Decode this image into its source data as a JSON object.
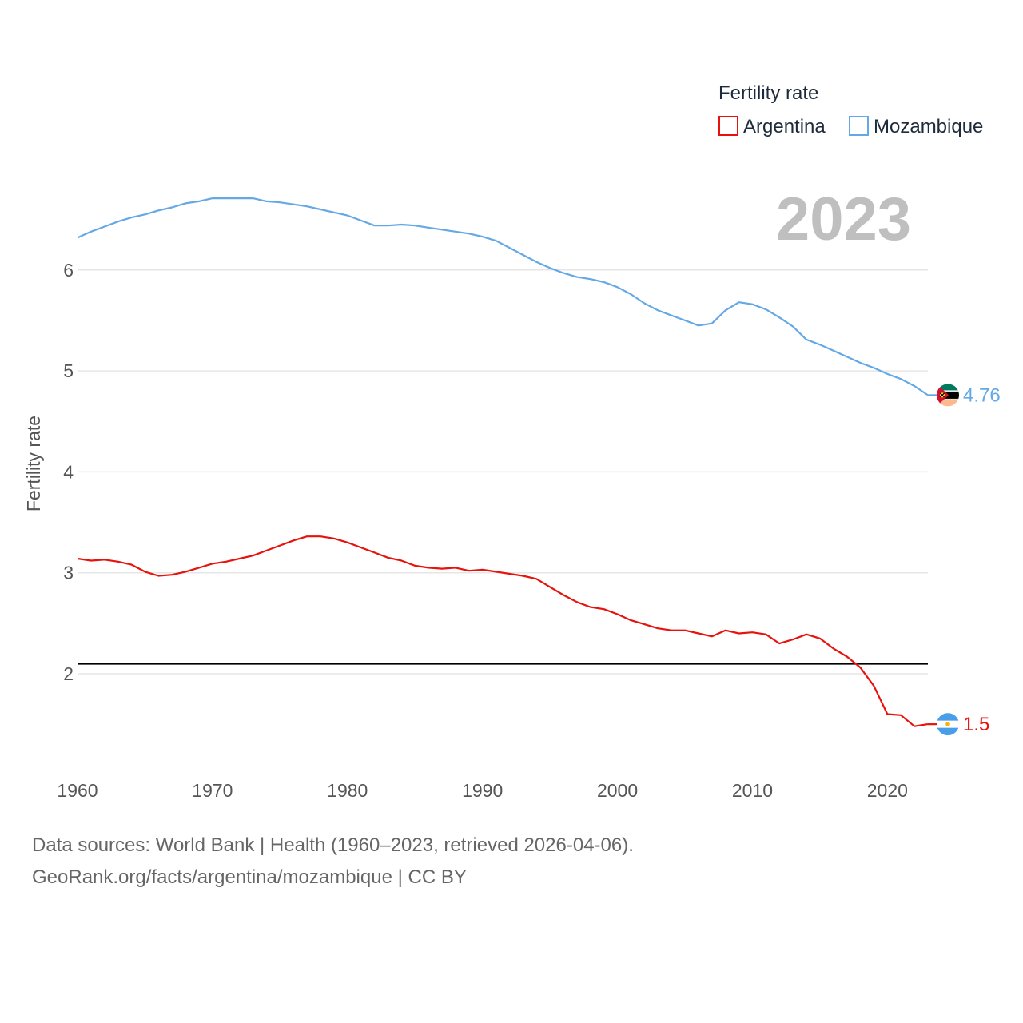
{
  "chart_data": {
    "type": "line",
    "ylabel": "Fertility rate",
    "xlabel": "",
    "xlim": [
      1960,
      2023
    ],
    "ylim": [
      1.05,
      7.0
    ],
    "xticks": [
      1960,
      1970,
      1980,
      1990,
      2000,
      2010,
      2020
    ],
    "yticks": [
      2,
      3,
      4,
      5,
      6
    ],
    "legend": {
      "title": "Fertility rate",
      "position": "top-right",
      "entries": [
        "Argentina",
        "Mozambique"
      ]
    },
    "year_label": "2023",
    "reference_line": {
      "y": 2.1,
      "color": "#000000"
    },
    "x": [
      1960,
      1961,
      1962,
      1963,
      1964,
      1965,
      1966,
      1967,
      1968,
      1969,
      1970,
      1971,
      1972,
      1973,
      1974,
      1975,
      1976,
      1977,
      1978,
      1979,
      1980,
      1981,
      1982,
      1983,
      1984,
      1985,
      1986,
      1987,
      1988,
      1989,
      1990,
      1991,
      1992,
      1993,
      1994,
      1995,
      1996,
      1997,
      1998,
      1999,
      2000,
      2001,
      2002,
      2003,
      2004,
      2005,
      2006,
      2007,
      2008,
      2009,
      2010,
      2011,
      2012,
      2013,
      2014,
      2015,
      2016,
      2017,
      2018,
      2019,
      2020,
      2021,
      2022,
      2023
    ],
    "series": [
      {
        "name": "Argentina",
        "color": "#e8120c",
        "end_label": "1.5",
        "values": [
          3.14,
          3.12,
          3.13,
          3.11,
          3.08,
          3.01,
          2.97,
          2.98,
          3.01,
          3.05,
          3.09,
          3.11,
          3.14,
          3.17,
          3.22,
          3.27,
          3.32,
          3.36,
          3.36,
          3.34,
          3.3,
          3.25,
          3.2,
          3.15,
          3.12,
          3.07,
          3.05,
          3.04,
          3.05,
          3.02,
          3.03,
          3.01,
          2.99,
          2.97,
          2.94,
          2.86,
          2.78,
          2.71,
          2.66,
          2.64,
          2.59,
          2.53,
          2.49,
          2.45,
          2.43,
          2.43,
          2.4,
          2.37,
          2.43,
          2.4,
          2.41,
          2.39,
          2.3,
          2.34,
          2.39,
          2.35,
          2.25,
          2.17,
          2.06,
          1.88,
          1.6,
          1.59,
          1.48,
          1.5
        ]
      },
      {
        "name": "Mozambique",
        "color": "#64a8e6",
        "end_label": "4.76",
        "values": [
          6.32,
          6.38,
          6.43,
          6.48,
          6.52,
          6.55,
          6.59,
          6.62,
          6.66,
          6.68,
          6.71,
          6.71,
          6.71,
          6.71,
          6.68,
          6.67,
          6.65,
          6.63,
          6.6,
          6.57,
          6.54,
          6.49,
          6.44,
          6.44,
          6.45,
          6.44,
          6.42,
          6.4,
          6.38,
          6.36,
          6.33,
          6.29,
          6.22,
          6.15,
          6.08,
          6.02,
          5.97,
          5.93,
          5.91,
          5.88,
          5.83,
          5.76,
          5.67,
          5.6,
          5.55,
          5.5,
          5.45,
          5.47,
          5.6,
          5.68,
          5.66,
          5.61,
          5.53,
          5.44,
          5.31,
          5.26,
          5.2,
          5.14,
          5.08,
          5.03,
          4.97,
          4.92,
          4.85,
          4.76
        ]
      }
    ]
  },
  "footer": {
    "line1": "Data sources: World Bank | Health (1960–2023, retrieved 2026-04-06).",
    "line2": "GeoRank.org/facts/argentina/mozambique | CC BY"
  }
}
